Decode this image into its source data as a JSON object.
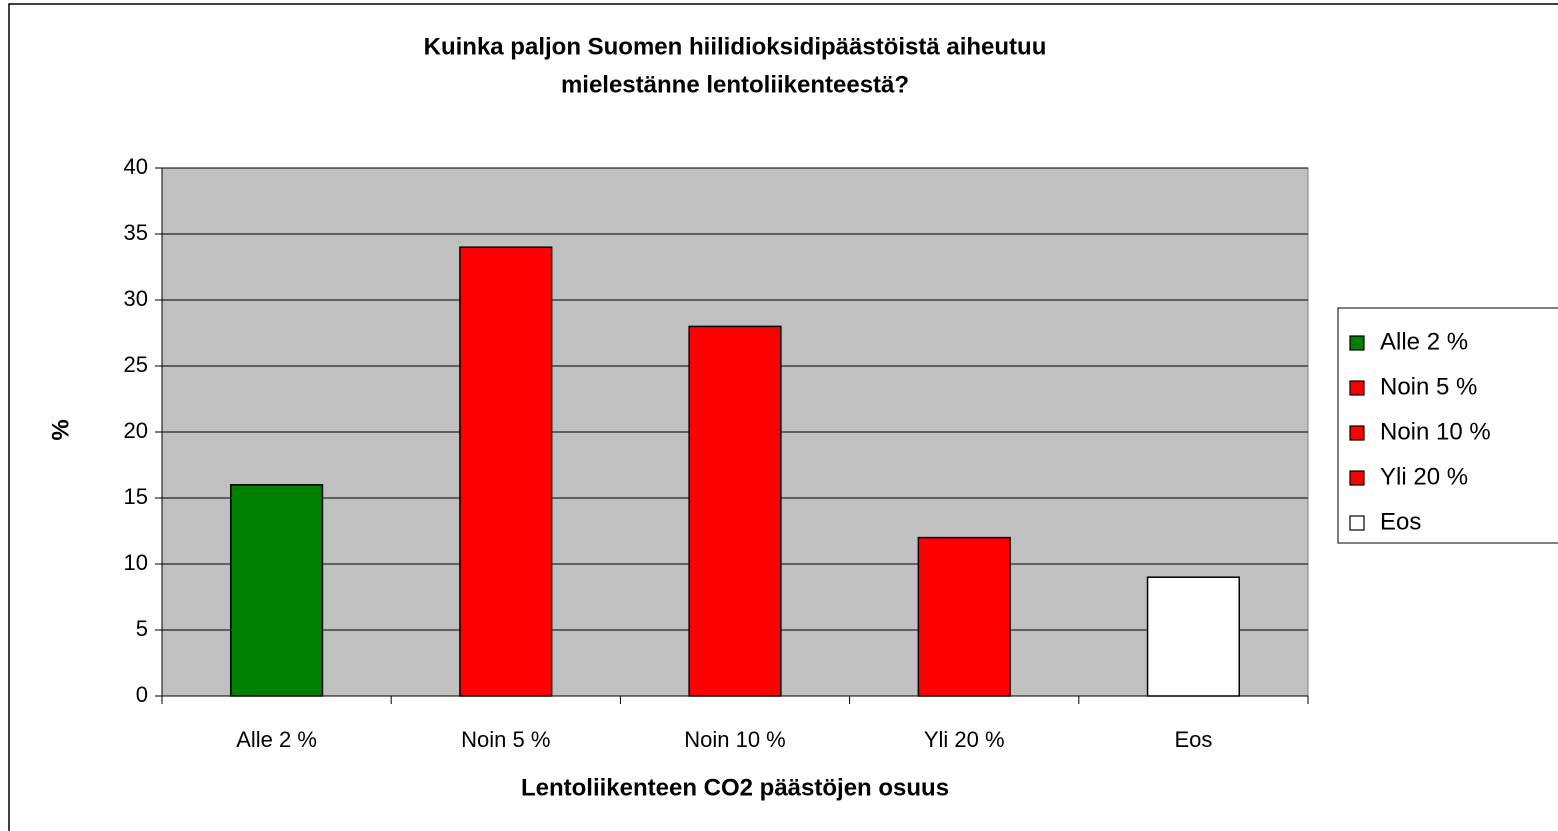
{
  "chart_data": {
    "type": "bar",
    "title": [
      "Kuinka paljon Suomen hiilidioksidipäästöistä aiheutuu",
      "mielestänne lentoliikenteestä?"
    ],
    "x_label": "Lentoliikenteen CO2 päästöjen osuus",
    "y_label": "%",
    "categories": [
      "Alle 2 %",
      "Noin 5 %",
      "Noin 10 %",
      "Yli 20 %",
      "Eos"
    ],
    "values": [
      16,
      34,
      28,
      12,
      9
    ],
    "colors": [
      "#008000",
      "#ff0000",
      "#ff0000",
      "#ff0000",
      "#ffffff"
    ],
    "ylim": [
      0,
      40
    ],
    "yticks": [
      0,
      5,
      10,
      15,
      20,
      25,
      30,
      35,
      40
    ],
    "grid": true,
    "legend": "right"
  }
}
